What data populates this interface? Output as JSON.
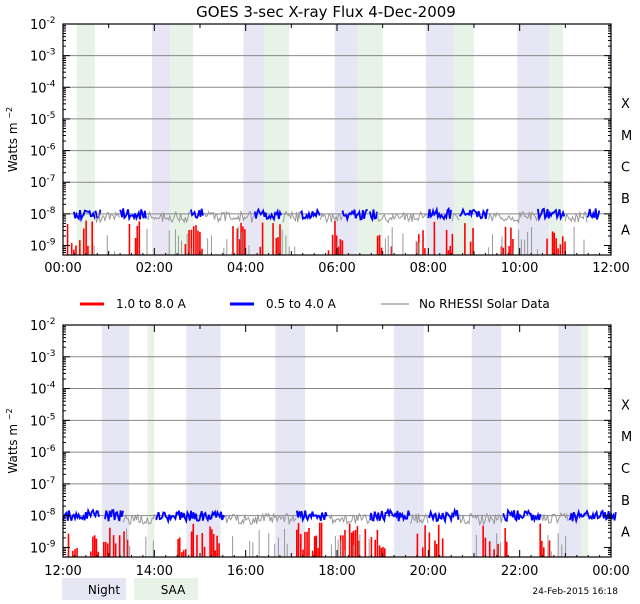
{
  "title": "GOES 3-sec X-ray Flux    4-Dec-2009",
  "ylabel": "Watts m",
  "ylabel_exp": "−2",
  "ytick_base": "10",
  "ytick_exponents": [
    "-2",
    "-3",
    "-4",
    "-5",
    "-6",
    "-7",
    "-8",
    "-9"
  ],
  "flare_classes": [
    "X",
    "M",
    "C",
    "B",
    "A"
  ],
  "legend": {
    "items": [
      {
        "label": "1.0 to 8.0 A",
        "color": "#ff0000"
      },
      {
        "label": "0.5 to 4.0 A",
        "color": "#0000ff"
      },
      {
        "label": "No RHESSI Solar Data",
        "color": "#999999"
      }
    ]
  },
  "footer": {
    "night_label": "Night",
    "saa_label": "SAA",
    "night_color": "#e6e6f5",
    "saa_color": "#e6f3e6",
    "timestamp": "24-Feb-2015 16:18"
  },
  "chart_data": [
    {
      "type": "line",
      "panel": "top",
      "x_range_hours": [
        0,
        12
      ],
      "xtick_labels": [
        "00:00",
        "02:00",
        "04:00",
        "06:00",
        "08:00",
        "10:00",
        "12:00"
      ],
      "ylim_log10": [
        -9.3,
        -2
      ],
      "night_intervals": [
        [
          1.95,
          2.35
        ],
        [
          3.95,
          4.4
        ],
        [
          5.95,
          6.45
        ],
        [
          7.95,
          8.55
        ],
        [
          9.95,
          10.65
        ],
        [
          11.95,
          12.7
        ]
      ],
      "saa_intervals": [
        [
          0.3,
          0.7
        ],
        [
          2.35,
          2.85
        ],
        [
          4.4,
          4.95
        ],
        [
          6.45,
          7.0
        ],
        [
          8.55,
          9.0
        ],
        [
          10.65,
          10.95
        ]
      ],
      "series": [
        {
          "name": "1.0 to 8.0 A",
          "color": "#ff0000",
          "baseline_log10": -8.0,
          "scale": "pos",
          "segments": [
            [
              0.25,
              1.7
            ],
            [
              3.1,
              4.6
            ],
            [
              6.7,
              7.7
            ],
            [
              8.9,
              10.0
            ],
            [
              10.8,
              11.0
            ],
            [
              11.5,
              12.0
            ],
            [
              14.2,
              15.5
            ],
            [
              17.0,
              18.2
            ],
            [
              19.0,
              20.4
            ],
            [
              21.0,
              21.5
            ],
            [
              22.0,
              22.5
            ],
            [
              24.0,
              24.7
            ],
            [
              26.5,
              27.5
            ]
          ]
        },
        {
          "name": "0.5 to 4.0 A",
          "color": "#0000ff",
          "baseline_log10": -8.0,
          "scale": "pos",
          "segments": [
            [
              0.6,
              2.1
            ],
            [
              3.1,
              4.6
            ],
            [
              7.0,
              7.7
            ],
            [
              10.5,
              12.0
            ],
            [
              13.0,
              14.1
            ],
            [
              15.3,
              16.7
            ],
            [
              16.8,
              17.2
            ],
            [
              20.0,
              21.3
            ],
            [
              21.7,
              23.3
            ],
            [
              26.0,
              27.5
            ],
            [
              28.7,
              29.4
            ]
          ]
        },
        {
          "name": "No RHESSI Solar Data",
          "color": "#999999",
          "baseline_log10": -8.1,
          "scale": "pos",
          "segments": [
            [
              1.7,
              3.1
            ],
            [
              4.6,
              7.0
            ],
            [
              7.7,
              10.5
            ],
            [
              12.0,
              13.0
            ],
            [
              14.1,
              15.3
            ],
            [
              17.2,
              20.0
            ],
            [
              21.3,
              21.7
            ],
            [
              23.3,
              26.0
            ],
            [
              27.5,
              28.7
            ]
          ]
        }
      ]
    },
    {
      "type": "line",
      "panel": "bottom",
      "x_range_hours": [
        12,
        24
      ],
      "xtick_labels": [
        "12:00",
        "14:00",
        "16:00",
        "18:00",
        "20:00",
        "22:00",
        "00:00"
      ],
      "ylim_log10": [
        -9.3,
        -2
      ],
      "night_intervals": [
        [
          12.85,
          13.45
        ],
        [
          14.7,
          15.45
        ],
        [
          16.65,
          17.3
        ],
        [
          19.25,
          19.9
        ],
        [
          20.95,
          21.6
        ],
        [
          22.85,
          23.35
        ]
      ],
      "saa_intervals": [
        [
          13.85,
          14.0
        ],
        [
          23.35,
          23.5
        ]
      ],
      "series": [
        {
          "name": "1.0 to 8.0 A",
          "color": "#ff0000",
          "baseline_log10": -8.0,
          "scale": "pos",
          "segments": [
            [
              0.3,
              0.9
            ],
            [
              1.4,
              3.6
            ],
            [
              6.3,
              8.9
            ],
            [
              12.8,
              14.6
            ],
            [
              15.2,
              17.8
            ],
            [
              19.4,
              21.0
            ],
            [
              23.0,
              24.5
            ],
            [
              26.0,
              26.7
            ]
          ]
        },
        {
          "name": "0.5 to 4.0 A",
          "color": "#0000ff",
          "baseline_log10": -8.0,
          "scale": "pos",
          "segments": [
            [
              0.0,
              2.0
            ],
            [
              2.3,
              3.3
            ],
            [
              5.1,
              8.9
            ],
            [
              12.8,
              14.5
            ],
            [
              16.8,
              19.0
            ],
            [
              20.0,
              21.7
            ],
            [
              24.1,
              26.2
            ],
            [
              27.7,
              30.3
            ]
          ]
        },
        {
          "name": "No RHESSI Solar Data",
          "color": "#999999",
          "baseline_log10": -8.1,
          "scale": "pos",
          "segments": [
            [
              3.3,
              5.1
            ],
            [
              8.9,
              12.8
            ],
            [
              14.5,
              16.8
            ],
            [
              19.0,
              20.0
            ],
            [
              21.7,
              24.1
            ],
            [
              26.2,
              27.7
            ]
          ]
        }
      ]
    }
  ]
}
